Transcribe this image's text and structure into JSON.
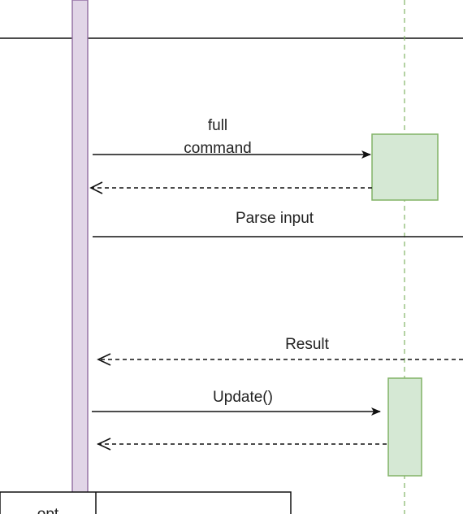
{
  "colors": {
    "background": "#ffffff",
    "line": "#111111",
    "activation_bar_fill": "#e1d5e7",
    "activation_bar_stroke": "#9673a6",
    "activation_box_fill": "#d5e8d4",
    "activation_box_stroke": "#82b366",
    "lifeline_dashed": "#82b366"
  },
  "messages": [
    {
      "label_line1": "full",
      "label_line2": "command",
      "kind": "sync"
    },
    {
      "label": "",
      "kind": "return"
    },
    {
      "label": "Parse input",
      "kind": "sync"
    },
    {
      "label": "Result",
      "kind": "return"
    },
    {
      "label": "Update()",
      "kind": "sync"
    },
    {
      "label": "",
      "kind": "return"
    }
  ],
  "fragment": {
    "operator_label": "opt"
  }
}
